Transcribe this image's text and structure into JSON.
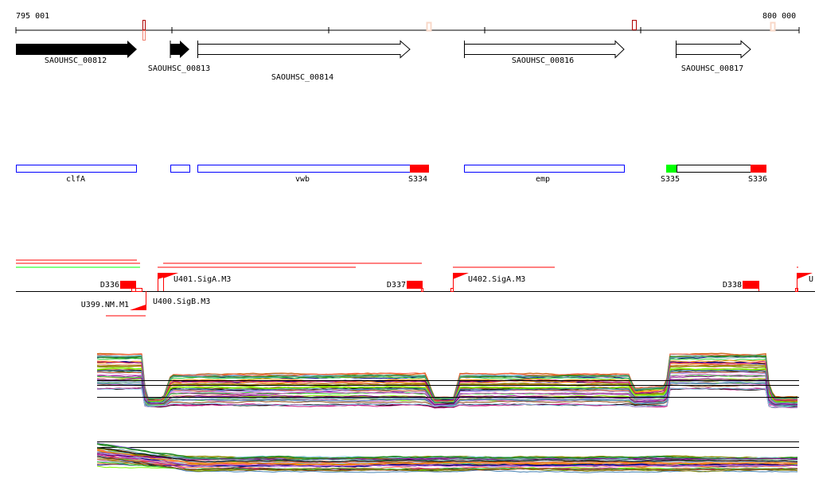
{
  "ruler": {
    "start_label": "795 001",
    "end_label": "800 000"
  },
  "genes": [
    {
      "name": "SAOUHSC_00812",
      "filled": true
    },
    {
      "name": "SAOUHSC_00813",
      "filled": true
    },
    {
      "name": "SAOUHSC_00814",
      "filled": false
    },
    {
      "name": "SAOUHSC_00816",
      "filled": false
    },
    {
      "name": "SAOUHSC_00817",
      "filled": false
    }
  ],
  "features": {
    "clfA": "clfA",
    "vwb": "vwb",
    "emp": "emp",
    "S334": "S334",
    "S335": "S335",
    "S336": "S336"
  },
  "segments": {
    "D336": "D336",
    "D337": "D337",
    "D338": "D338",
    "U399": "U399.NM.M1",
    "U400": "U400.SigB.M3",
    "U401": "U401.SigA.M3",
    "U402": "U402.SigA.M3",
    "U403": "U"
  },
  "colors": {
    "red": "#ff0000",
    "green": "#00ff00",
    "blue": "#0000ff",
    "darkred": "#b00000",
    "peach": "#f8d8c8"
  }
}
